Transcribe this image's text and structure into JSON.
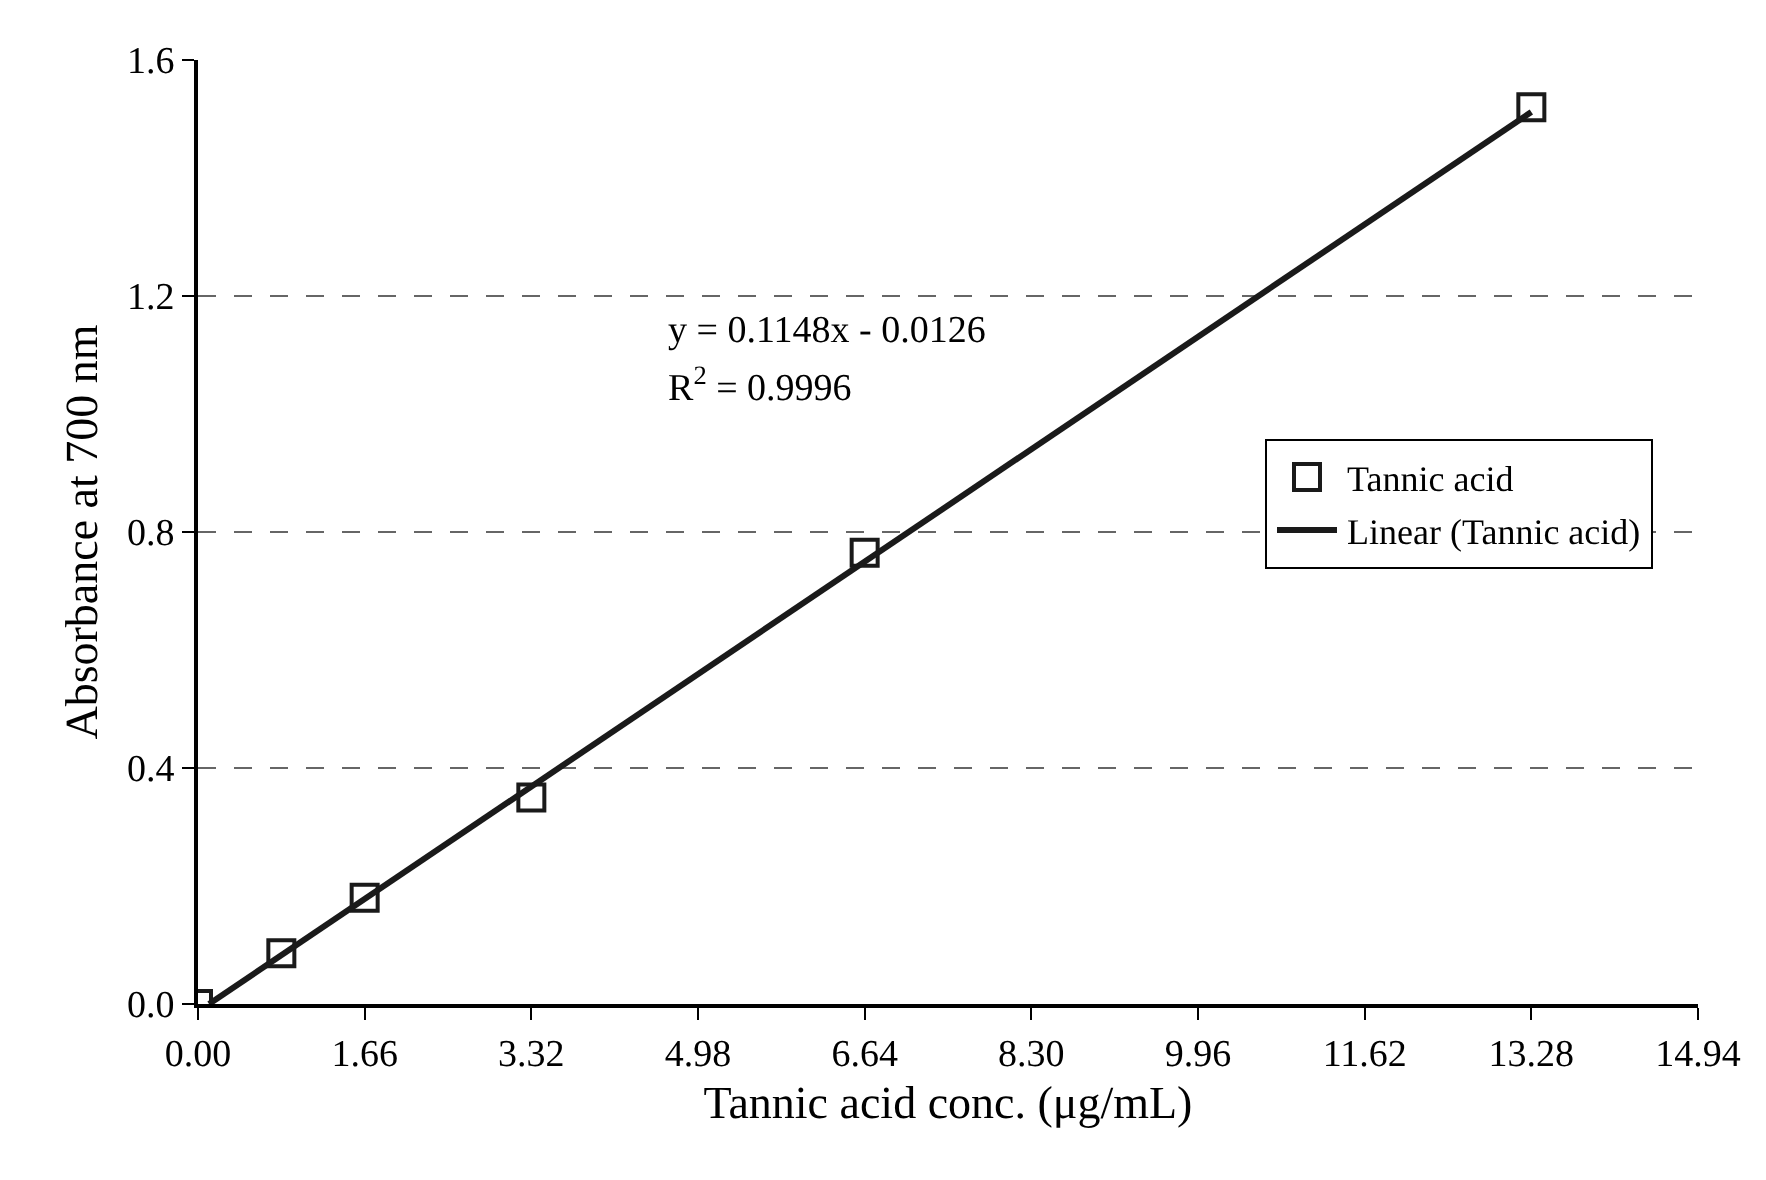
{
  "chart_data": {
    "type": "scatter",
    "xlabel": "Tannic acid conc. (μg/mL)",
    "ylabel": "Absorbance at 700 nm",
    "xlim": [
      0,
      14.94
    ],
    "xticks": [
      {
        "value": 0,
        "label": "0.00"
      },
      1.66,
      3.32,
      4.98,
      6.64,
      {
        "value": 8.3,
        "label": "8.30"
      },
      9.96,
      11.62,
      13.28,
      14.94
    ],
    "ylim": [
      0,
      1.6
    ],
    "yticks": [
      {
        "value": 0,
        "label": "0.0"
      },
      0.4,
      0.8,
      1.2,
      1.6
    ],
    "grid": "y",
    "legend": "right",
    "annotations": [
      "y = 0.1148x - 0.0126",
      "R$^{2}$ = 0.9996"
    ],
    "series": [
      {
        "name": "Tannic acid",
        "marker": "square",
        "color": "#1a1a1a",
        "x": [
          0,
          0.83,
          1.66,
          3.32,
          6.64,
          13.28
        ],
        "values": [
          0,
          0.086,
          0.18,
          0.35,
          0.765,
          1.52
        ]
      },
      {
        "name": "Linear (Tannic acid)",
        "type": "line",
        "marker": "none",
        "color": "#1a1a1a",
        "x": [
          0.11,
          13.28
        ],
        "values": [
          0,
          1.512
        ]
      }
    ]
  }
}
